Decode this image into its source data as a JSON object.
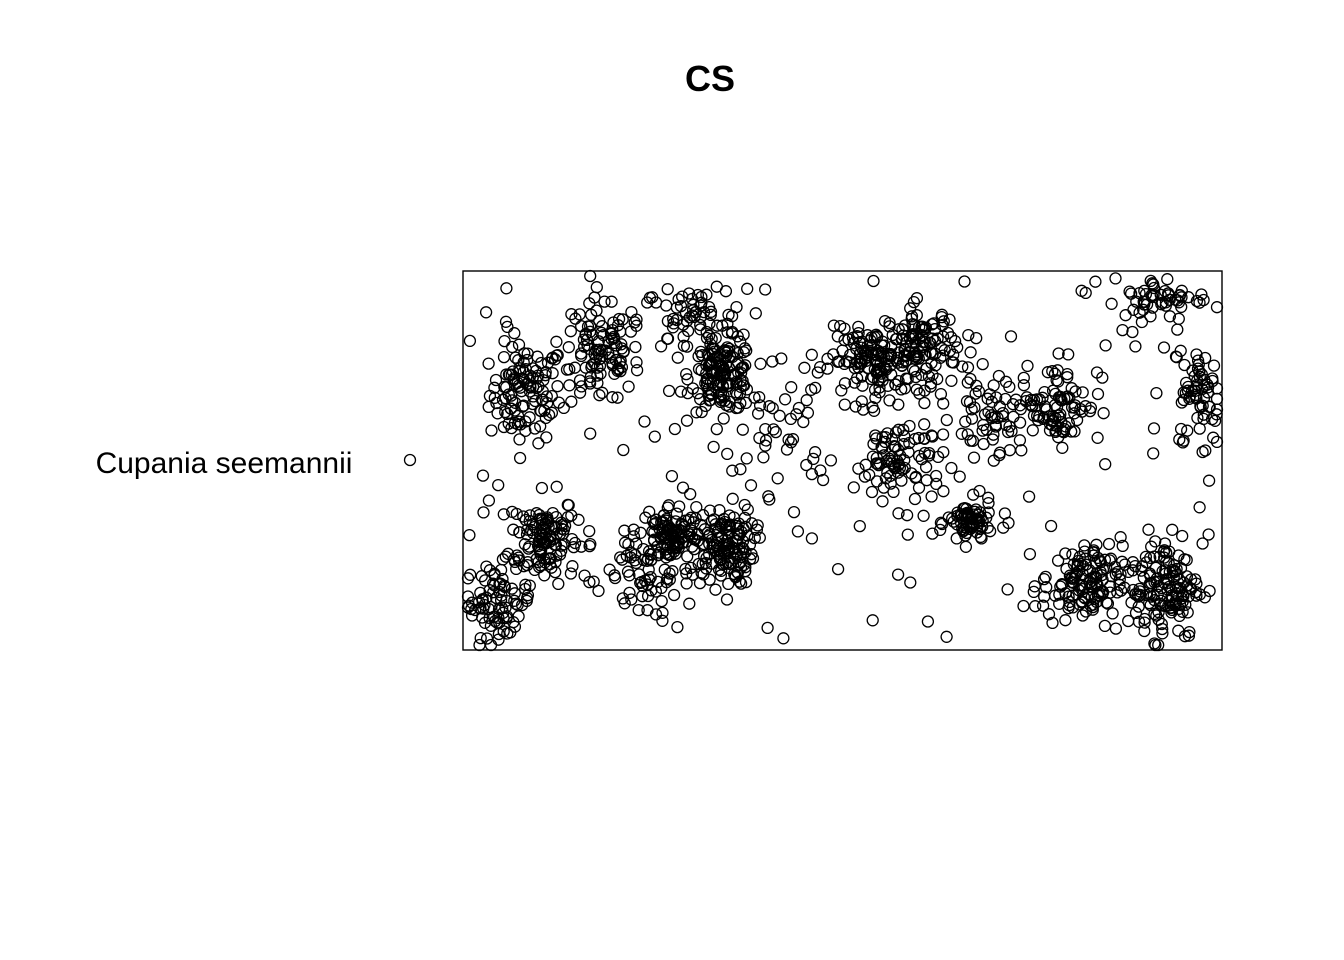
{
  "chart_data": {
    "type": "scatter",
    "title": "CS",
    "xlabel": "",
    "ylabel": "",
    "xlim": [
      0,
      1000
    ],
    "ylim": [
      0,
      500
    ],
    "axes_drawn": false,
    "grid": false,
    "marker": "open-circle",
    "colors": {
      "point_stroke": "#000000",
      "frame": "#000000",
      "background": "#ffffff"
    },
    "legend": {
      "placement": "left",
      "entries": [
        {
          "label": "Cupania seemannii",
          "marker": "open-circle"
        }
      ]
    },
    "series": [
      {
        "name": "Cupania seemannii",
        "clusters": [
          {
            "cx": 77,
            "cy": 340,
            "sx": 40,
            "sy": 55,
            "n": 110
          },
          {
            "cx": 100,
            "cy": 145,
            "sx": 38,
            "sy": 50,
            "n": 120
          },
          {
            "cx": 40,
            "cy": 60,
            "sx": 40,
            "sy": 40,
            "n": 80
          },
          {
            "cx": 175,
            "cy": 395,
            "sx": 45,
            "sy": 60,
            "n": 100
          },
          {
            "cx": 340,
            "cy": 365,
            "sx": 35,
            "sy": 40,
            "n": 140
          },
          {
            "cx": 300,
            "cy": 440,
            "sx": 60,
            "sy": 35,
            "n": 60
          },
          {
            "cx": 270,
            "cy": 150,
            "sx": 35,
            "sy": 35,
            "n": 100
          },
          {
            "cx": 340,
            "cy": 135,
            "sx": 35,
            "sy": 45,
            "n": 140
          },
          {
            "cx": 250,
            "cy": 90,
            "sx": 70,
            "sy": 50,
            "n": 60
          },
          {
            "cx": 420,
            "cy": 290,
            "sx": 50,
            "sy": 70,
            "n": 40
          },
          {
            "cx": 540,
            "cy": 385,
            "sx": 45,
            "sy": 35,
            "n": 120
          },
          {
            "cx": 605,
            "cy": 405,
            "sx": 40,
            "sy": 45,
            "n": 110
          },
          {
            "cx": 575,
            "cy": 250,
            "sx": 50,
            "sy": 50,
            "n": 90
          },
          {
            "cx": 670,
            "cy": 165,
            "sx": 25,
            "sy": 25,
            "n": 70
          },
          {
            "cx": 700,
            "cy": 310,
            "sx": 45,
            "sy": 45,
            "n": 60
          },
          {
            "cx": 790,
            "cy": 330,
            "sx": 45,
            "sy": 45,
            "n": 80
          },
          {
            "cx": 820,
            "cy": 80,
            "sx": 45,
            "sy": 45,
            "n": 130
          },
          {
            "cx": 930,
            "cy": 80,
            "sx": 40,
            "sy": 60,
            "n": 140
          },
          {
            "cx": 980,
            "cy": 340,
            "sx": 25,
            "sy": 50,
            "n": 60
          },
          {
            "cx": 930,
            "cy": 470,
            "sx": 50,
            "sy": 25,
            "n": 50
          },
          {
            "cx": 500,
            "cy": 250,
            "sx": 500,
            "sy": 250,
            "n": 150,
            "uniform": true
          }
        ]
      }
    ]
  }
}
